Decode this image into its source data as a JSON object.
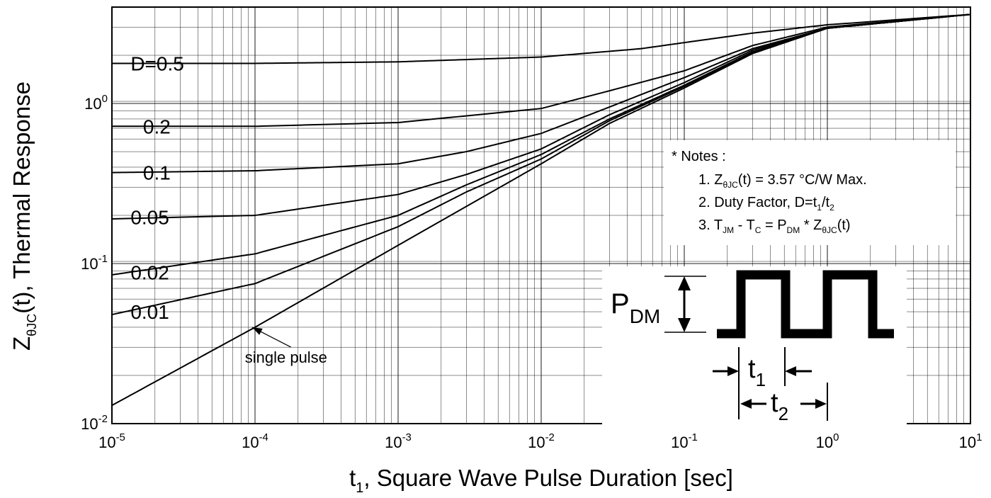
{
  "chart_data": {
    "type": "line",
    "x_scale": "log",
    "y_scale": "log",
    "xlim": [
      1e-05,
      10
    ],
    "ylim": [
      0.01,
      4
    ],
    "grid": true,
    "xlabel": {
      "base": "t",
      "sub": "1",
      "rest": ", Square Wave Pulse Duration [sec]"
    },
    "ylabel": {
      "base": "Z",
      "sub": "θJC",
      "rest": "(t), Thermal Response"
    },
    "x_ticks": [
      {
        "base": "10",
        "exp": "-5",
        "value": 1e-05
      },
      {
        "base": "10",
        "exp": "-4",
        "value": 0.0001
      },
      {
        "base": "10",
        "exp": "-3",
        "value": 0.001
      },
      {
        "base": "10",
        "exp": "-2",
        "value": 0.01
      },
      {
        "base": "10",
        "exp": "-1",
        "value": 0.1
      },
      {
        "base": "10",
        "exp": "0",
        "value": 1
      },
      {
        "base": "10",
        "exp": "1",
        "value": 10
      }
    ],
    "y_ticks": [
      {
        "base": "10",
        "exp": "-2",
        "value": 0.01
      },
      {
        "base": "10",
        "exp": "-1",
        "value": 0.1
      },
      {
        "base": "10",
        "exp": "0",
        "value": 1
      }
    ],
    "series": [
      {
        "name": "D=0.5",
        "x": [
          1e-05,
          0.0001,
          0.001,
          0.01,
          0.05,
          0.1,
          0.3,
          1,
          10
        ],
        "y": [
          1.78,
          1.78,
          1.82,
          1.95,
          2.2,
          2.4,
          2.75,
          3.1,
          3.6
        ]
      },
      {
        "name": "0.2",
        "x": [
          1e-05,
          0.0001,
          0.001,
          0.01,
          0.03,
          0.1,
          0.3,
          1,
          10
        ],
        "y": [
          0.72,
          0.72,
          0.76,
          0.93,
          1.2,
          1.6,
          2.3,
          3.0,
          3.6
        ]
      },
      {
        "name": "0.1",
        "x": [
          1e-05,
          0.0001,
          0.001,
          0.003,
          0.01,
          0.03,
          0.1,
          0.3,
          1,
          10
        ],
        "y": [
          0.37,
          0.38,
          0.42,
          0.5,
          0.65,
          0.95,
          1.45,
          2.2,
          2.95,
          3.6
        ]
      },
      {
        "name": "0.05",
        "x": [
          1e-05,
          0.0001,
          0.001,
          0.003,
          0.01,
          0.03,
          0.1,
          0.3,
          1,
          10
        ],
        "y": [
          0.19,
          0.2,
          0.27,
          0.36,
          0.52,
          0.85,
          1.35,
          2.15,
          2.95,
          3.6
        ]
      },
      {
        "name": "0.02",
        "x": [
          1e-05,
          0.0001,
          0.001,
          0.003,
          0.01,
          0.03,
          0.1,
          0.3,
          1,
          10
        ],
        "y": [
          0.085,
          0.115,
          0.2,
          0.31,
          0.48,
          0.8,
          1.3,
          2.1,
          2.95,
          3.6
        ]
      },
      {
        "name": "0.01",
        "x": [
          1e-05,
          0.0001,
          0.001,
          0.003,
          0.01,
          0.03,
          0.1,
          0.3,
          1,
          10
        ],
        "y": [
          0.048,
          0.075,
          0.17,
          0.28,
          0.45,
          0.78,
          1.28,
          2.08,
          2.95,
          3.6
        ]
      },
      {
        "name": "single pulse",
        "x": [
          1e-05,
          0.0001,
          0.001,
          0.01,
          0.03,
          0.1,
          0.3,
          1,
          10
        ],
        "y": [
          0.013,
          0.04,
          0.13,
          0.42,
          0.75,
          1.25,
          2.05,
          2.95,
          3.6
        ]
      }
    ],
    "curve_labels": [
      {
        "text": "D=0.5",
        "x": 1.35e-05,
        "y": 1.78
      },
      {
        "text": "0.2",
        "x": 1.65e-05,
        "y": 0.72
      },
      {
        "text": "0.1",
        "x": 1.65e-05,
        "y": 0.37
      },
      {
        "text": "0.05",
        "x": 1.35e-05,
        "y": 0.195
      },
      {
        "text": "0.02",
        "x": 1.35e-05,
        "y": 0.088
      },
      {
        "text": "0.01",
        "x": 1.35e-05,
        "y": 0.05
      }
    ],
    "annotation": {
      "text": "single pulse",
      "arrow_to": {
        "x": 9.55e-05,
        "y": 0.04
      },
      "text_at": {
        "x": 8.5e-05,
        "y": 0.024
      }
    },
    "notes": {
      "heading": "* Notes :",
      "line1": {
        "prefix": "1. Z",
        "sub": "θJC",
        "rest": "(t) = 3.57 °C/W Max."
      },
      "line2": {
        "prefix": "2. Duty Factor, D=t",
        "sub1": "1",
        "mid": "/t",
        "sub2": "2"
      },
      "line3": {
        "prefix": "3. T",
        "sub1": "JM",
        "mid1": " - T",
        "sub2": "C",
        "mid2": " = P",
        "sub3": "DM",
        "mid3": " * Z",
        "sub4": "θJC",
        "rest": "(t)"
      }
    },
    "pulse_diagram": {
      "pdm": {
        "base": "P",
        "sub": "DM"
      },
      "t1": {
        "base": "t",
        "sub": "1"
      },
      "t2": {
        "base": "t",
        "sub": "2"
      }
    },
    "colors": {
      "line": "#000000",
      "grid": "#000000",
      "background": "#ffffff"
    }
  }
}
